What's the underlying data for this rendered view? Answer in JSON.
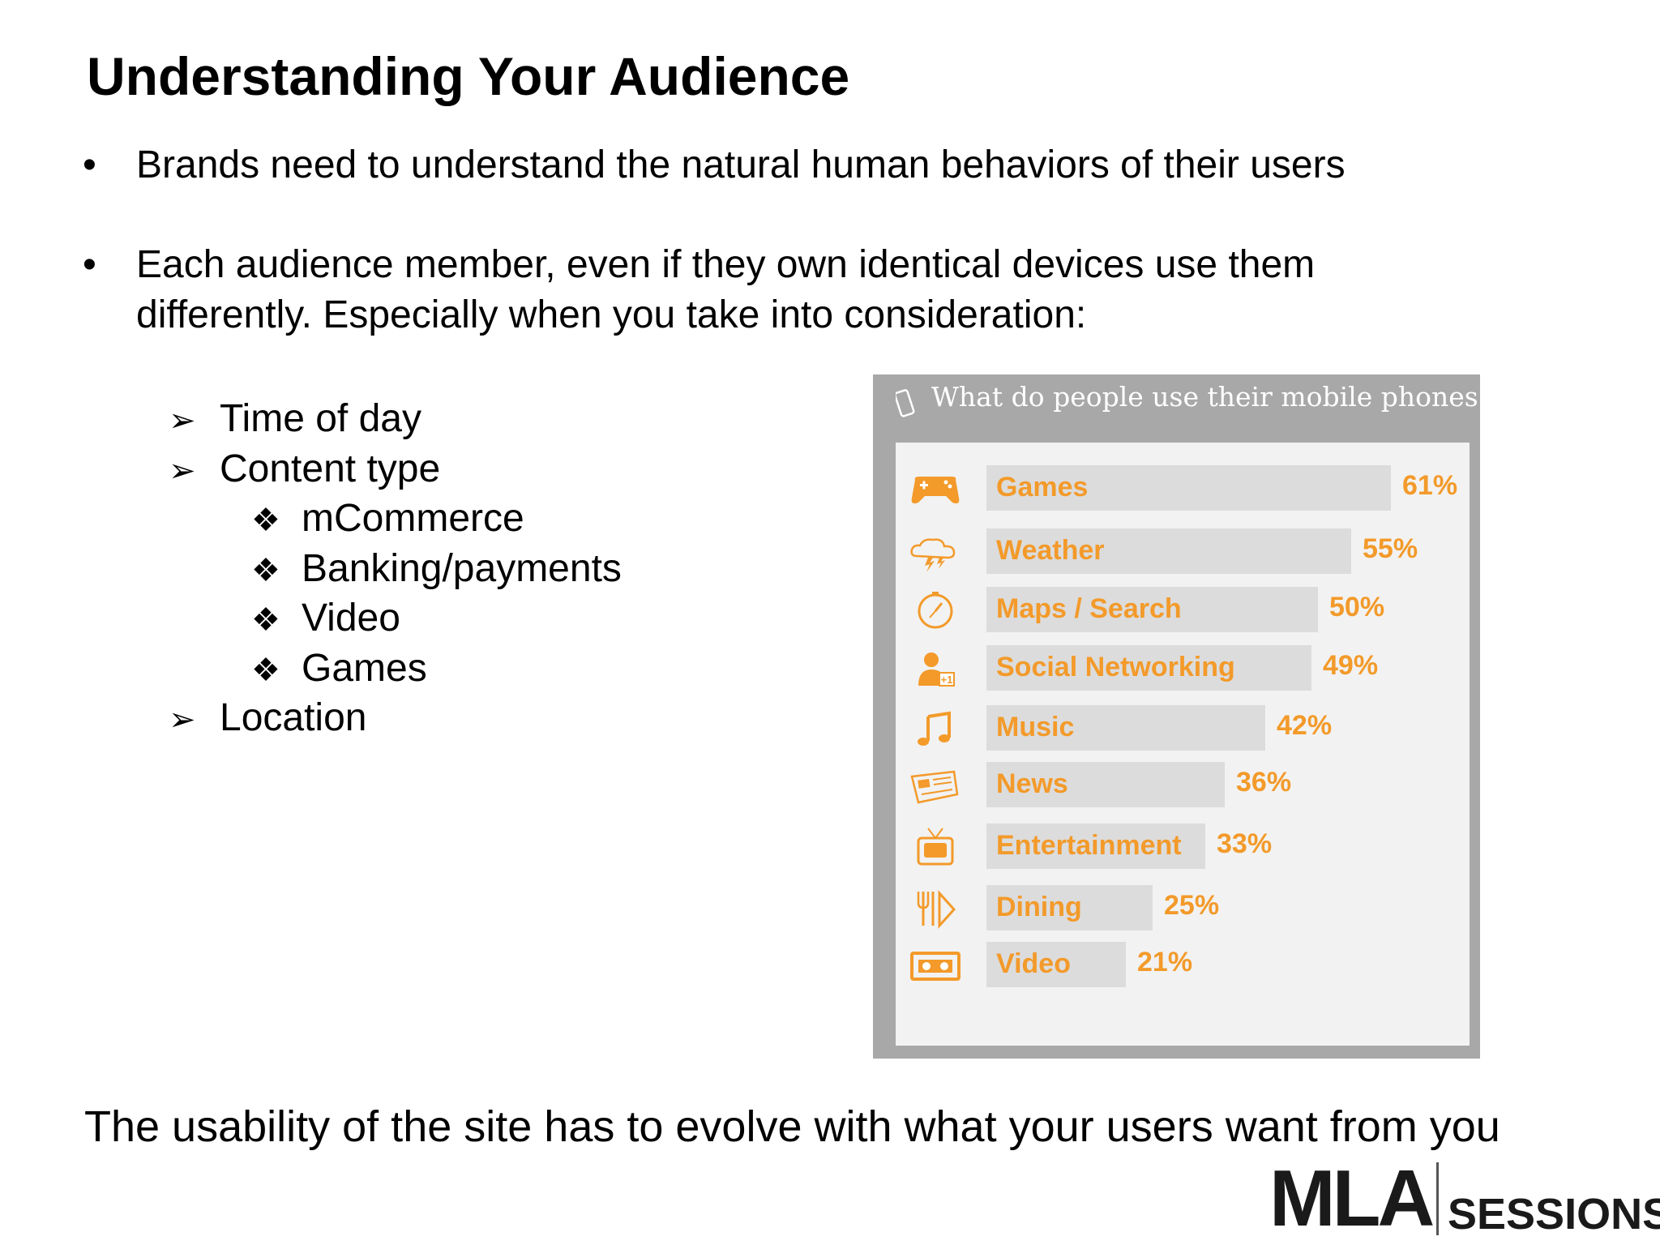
{
  "slide": {
    "title": "Understanding Your Audience",
    "bullets": [
      "Brands need to understand the natural human behaviors of their users",
      "Each audience member, even if they own identical devices use them differently. Especially when you take into consideration:"
    ],
    "bullet_marker": "•",
    "sub_items": {
      "time_of_day": "Time of day",
      "content_type": "Content type",
      "mcommerce": "mCommerce",
      "banking": "Banking/payments",
      "video": "Video",
      "games": "Games",
      "location": "Location"
    },
    "arrow_marker": "➢",
    "diamond_marker": "❖",
    "footer": "The usability of the site has to evolve with what your users want from you"
  },
  "infographic": {
    "title": "What do people use their mobile phones for",
    "accent_color": "#f39a2a",
    "icons": [
      "gamepad-icon",
      "weather-icon",
      "compass-icon",
      "social-icon",
      "music-icon",
      "newspaper-icon",
      "tv-icon",
      "dining-icon",
      "video-icon"
    ]
  },
  "chart_data": {
    "type": "bar",
    "title": "What do people use their mobile phones for",
    "categories": [
      "Games",
      "Weather",
      "Maps / Search",
      "Social Networking",
      "Music",
      "News",
      "Entertainment",
      "Dining",
      "Video"
    ],
    "values": [
      61,
      55,
      50,
      49,
      42,
      36,
      33,
      25,
      21
    ],
    "labels": [
      "61%",
      "55%",
      "50%",
      "49%",
      "42%",
      "36%",
      "33%",
      "25%",
      "21%"
    ],
    "orientation": "horizontal",
    "ylim": [
      0,
      100
    ]
  },
  "logo": {
    "mla": "MLA",
    "sessions": "SESSIONS"
  }
}
